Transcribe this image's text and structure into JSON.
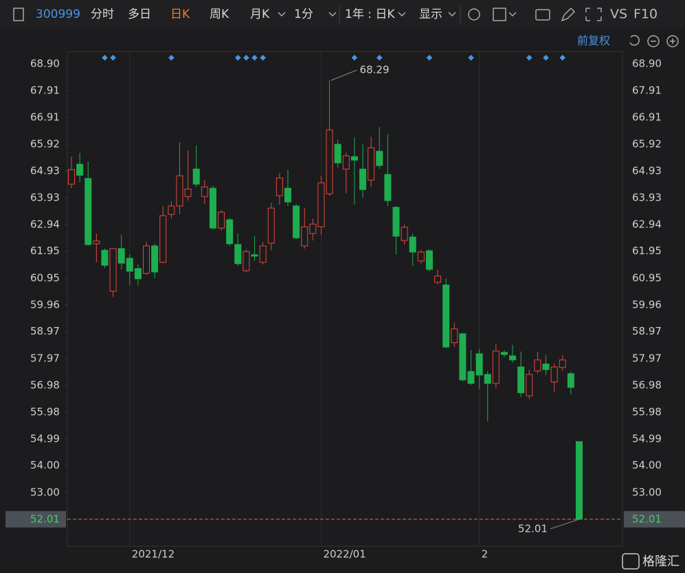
{
  "toolbar": {
    "code": "300999",
    "tabs": [
      "分时",
      "多日",
      "日K",
      "周K",
      "月K",
      "1分"
    ],
    "range": "1年 : 日K",
    "display": "显示",
    "vs": "VS",
    "f10": "F10",
    "adjust": "前复权",
    "logo": "格隆汇"
  },
  "chart_data": {
    "type": "candlestick",
    "categories": [
      null,
      null,
      null,
      null,
      null,
      null,
      null,
      "2021/12",
      null,
      null,
      null,
      null,
      null,
      null,
      null,
      null,
      null,
      null,
      null,
      null,
      null,
      null,
      null,
      null,
      null,
      null,
      null,
      null,
      null,
      null,
      "2022/01",
      null,
      null,
      null,
      null,
      null,
      null,
      null,
      null,
      null,
      null,
      null,
      null,
      null,
      null,
      null,
      null,
      null,
      null,
      "2",
      null,
      null,
      null,
      null,
      null,
      null,
      null,
      null,
      null,
      null,
      null,
      null
    ],
    "open": [
      64.44,
      65.18,
      64.65,
      62.23,
      61.99,
      60.47,
      62.05,
      61.69,
      61.31,
      61.13,
      62.15,
      61.54,
      63.32,
      63.63,
      63.98,
      65.0,
      63.98,
      64.29,
      62.81,
      63.12,
      62.2,
      61.23,
      61.82,
      61.54,
      62.25,
      64.01,
      64.29,
      63.63,
      62.15,
      62.61,
      62.86,
      64.08,
      65.92,
      65.0,
      65.46,
      65.0,
      64.59,
      65.66,
      64.8,
      63.58,
      62.35,
      62.48,
      61.59,
      61.97,
      60.8,
      60.7,
      58.56,
      58.89,
      57.49,
      58.15,
      57.38,
      57.05,
      58.2,
      58.07,
      57.66,
      56.59,
      57.51,
      57.77,
      57.1,
      57.64,
      57.41,
      54.89
    ],
    "high": [
      65.46,
      65.59,
      65.28,
      62.61,
      62.05,
      62.05,
      62.56,
      61.84,
      61.46,
      62.3,
      62.23,
      63.63,
      63.8,
      65.99,
      65.69,
      65.87,
      64.59,
      64.39,
      63.47,
      63.19,
      62.61,
      62.02,
      62.53,
      62.3,
      63.75,
      64.85,
      64.98,
      63.7,
      63.55,
      63.17,
      64.75,
      68.29,
      66.1,
      65.61,
      66.17,
      65.92,
      66.2,
      66.56,
      66.3,
      63.63,
      62.94,
      62.61,
      62.0,
      62.02,
      61.26,
      60.95,
      59.3,
      58.91,
      58.28,
      58.33,
      57.51,
      58.51,
      58.28,
      58.48,
      58.23,
      57.56,
      58.23,
      58.1,
      57.79,
      58.1,
      57.49,
      54.89
    ],
    "low": [
      64.29,
      64.52,
      62.15,
      61.54,
      61.33,
      60.26,
      61.28,
      60.7,
      60.7,
      61.08,
      60.95,
      61.51,
      63.17,
      63.32,
      63.83,
      64.34,
      63.7,
      62.76,
      62.73,
      62.15,
      61.41,
      61.18,
      61.59,
      61.46,
      61.99,
      63.68,
      63.63,
      62.4,
      62.05,
      62.35,
      62.56,
      64.01,
      65.05,
      64.11,
      63.68,
      63.93,
      64.34,
      65.0,
      63.63,
      61.84,
      62.2,
      61.41,
      61.49,
      61.2,
      60.72,
      58.35,
      58.4,
      57.13,
      57.0,
      56.85,
      55.65,
      56.87,
      58.02,
      57.82,
      56.54,
      56.47,
      57.41,
      57.36,
      56.75,
      57.51,
      56.62,
      52.01
    ],
    "close": [
      64.98,
      64.77,
      62.2,
      62.33,
      61.43,
      62.05,
      61.51,
      61.21,
      60.93,
      62.15,
      61.18,
      63.27,
      63.63,
      64.75,
      64.26,
      64.44,
      64.34,
      62.81,
      63.4,
      62.23,
      61.49,
      61.94,
      61.77,
      62.15,
      63.55,
      64.67,
      63.78,
      62.45,
      62.86,
      62.96,
      64.49,
      66.45,
      65.23,
      65.49,
      65.33,
      64.24,
      65.79,
      65.13,
      63.83,
      62.51,
      62.84,
      61.92,
      61.92,
      61.28,
      61.03,
      58.4,
      59.07,
      57.18,
      57.05,
      57.36,
      57.05,
      58.25,
      58.12,
      57.92,
      56.7,
      57.38,
      57.92,
      57.56,
      57.66,
      57.92,
      56.9,
      52.01
    ],
    "up_color": "#e8473c",
    "down_color": "#1fae4f",
    "ylim": [
      51.01,
      69.36
    ],
    "yticks": [
      {
        "value": 68.9,
        "label": "68.90"
      },
      67.91,
      66.91,
      65.92,
      64.93,
      63.93,
      62.94,
      61.95,
      60.95,
      59.96,
      58.97,
      57.97,
      56.98,
      55.98,
      54.99,
      {
        "value": 54,
        "label": "54.00"
      },
      {
        "value": 53,
        "label": "53.00"
      },
      52.01
    ]
  }
}
